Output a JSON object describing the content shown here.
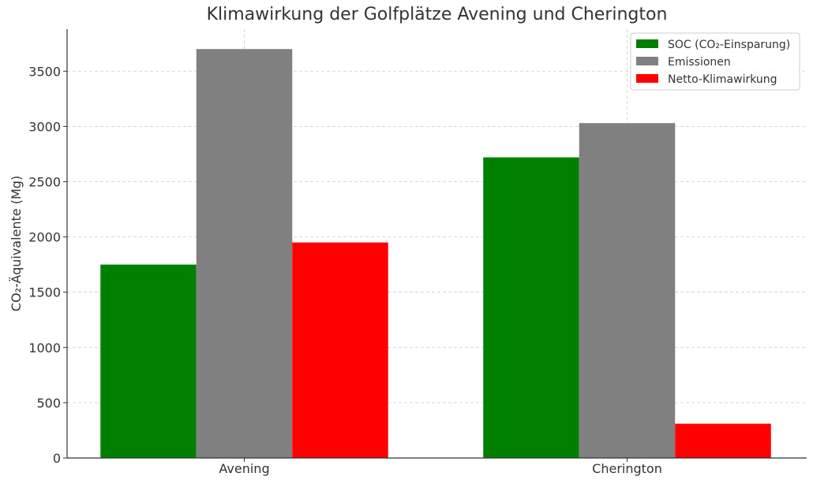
{
  "chart_data": {
    "type": "bar",
    "title": "Klimawirkung der Golfplätze Avening und Cherington",
    "xlabel": "",
    "ylabel": "CO₂-Äquivalente (Mg)",
    "categories": [
      "Avening",
      "Cherington"
    ],
    "series": [
      {
        "name": "SOC (CO₂-Einsparung)",
        "color": "#008000",
        "values": [
          1750,
          2720
        ]
      },
      {
        "name": "Emissionen",
        "color": "#808080",
        "values": [
          3700,
          3030
        ]
      },
      {
        "name": "Netto-Klimawirkung",
        "color": "#ff0000",
        "values": [
          1950,
          310
        ]
      }
    ],
    "ylim": [
      0,
      3880
    ],
    "yticks": [
      0,
      500,
      1000,
      1500,
      2000,
      2500,
      3000,
      3500
    ],
    "grid": true,
    "legend_position": "top-right"
  }
}
